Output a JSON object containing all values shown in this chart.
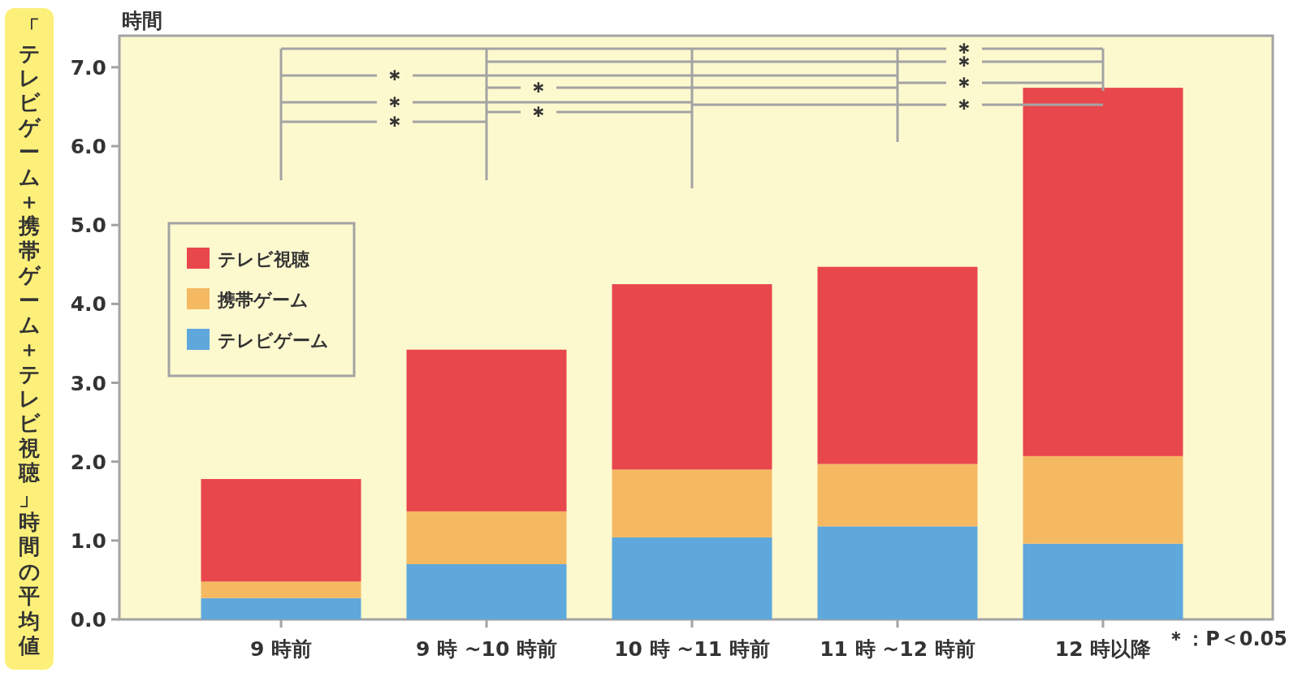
{
  "chart_data": {
    "type": "bar",
    "stacked": true,
    "ylabel": "「テレビゲーム＋携帯ゲーム＋テレビ視聴」時間の平均値",
    "categories": [
      "9 時前",
      "9 時 ~10 時前",
      "10 時 ~11 時前",
      "11 時 ~12 時前",
      "12 時以降"
    ],
    "series": [
      {
        "name": "テレビゲーム",
        "color": "#5ea8dc",
        "values": [
          0.27,
          0.7,
          1.04,
          1.18,
          0.96
        ]
      },
      {
        "name": "携帯ゲーム",
        "color": "#f5b962",
        "values": [
          0.21,
          0.67,
          0.86,
          0.79,
          1.11
        ]
      },
      {
        "name": "テレビ視聴",
        "color": "#e8474c",
        "values": [
          1.3,
          2.05,
          2.35,
          2.5,
          4.67
        ]
      }
    ],
    "ylim": [
      0,
      7.4
    ],
    "yticks": [
      {
        "value": 0,
        "label": "0.0"
      },
      {
        "value": 1,
        "label": "1.0"
      },
      {
        "value": 2,
        "label": "2.0"
      },
      {
        "value": 3,
        "label": "3.0"
      },
      {
        "value": 4,
        "label": "4.0"
      },
      {
        "value": 5,
        "label": "5.0"
      },
      {
        "value": 6,
        "label": "6.0"
      },
      {
        "value": 7,
        "label": "7.0"
      }
    ],
    "legend": "top left",
    "grid": false,
    "annotations": [
      "時間",
      "＊：P＜0.05",
      "＊",
      "＊",
      "＊",
      "＊",
      "＊",
      "＊",
      "＊",
      "＊",
      "＊"
    ]
  }
}
